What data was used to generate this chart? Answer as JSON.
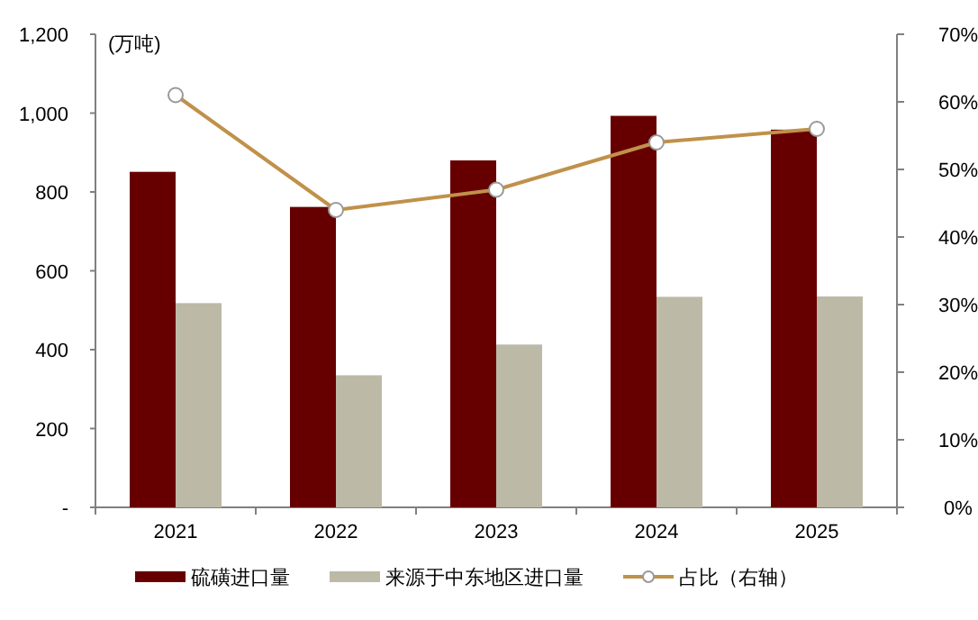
{
  "chart_data": {
    "type": "bar",
    "ylabel": "(万吨)",
    "categories": [
      "2021",
      "2022",
      "2023",
      "2024",
      "2025"
    ],
    "series": [
      {
        "name": "硫磺进口量",
        "color": "#660000",
        "values": [
          851,
          762,
          880,
          993,
          958
        ]
      },
      {
        "name": "来源于中东地区进口量",
        "color": "#bcbaa7",
        "values": [
          518,
          335,
          413,
          534,
          535
        ]
      },
      {
        "name": "占比（右轴）",
        "type": "line",
        "axis": "y2",
        "color": "#c0914a",
        "marker": "circle",
        "values": [
          61,
          44,
          47,
          54,
          56
        ]
      }
    ],
    "ylim": [
      0,
      1200
    ],
    "yticks": [
      {
        "value": 0,
        "label": "-"
      },
      200,
      400,
      600,
      800,
      {
        "value": 1000,
        "label": "1,000"
      },
      {
        "value": 1200,
        "label": "1,200"
      }
    ],
    "y2lim": [
      0,
      70
    ],
    "y2ticks": [
      {
        "value": 0,
        "label": "0%"
      },
      {
        "value": 10,
        "label": "10%"
      },
      {
        "value": 20,
        "label": "20%"
      },
      {
        "value": 30,
        "label": "30%"
      },
      {
        "value": 40,
        "label": "40%"
      },
      {
        "value": 50,
        "label": "50%"
      },
      {
        "value": 60,
        "label": "60%"
      },
      {
        "value": 70,
        "label": "70%"
      }
    ],
    "grid": false,
    "legend": "bottom"
  }
}
